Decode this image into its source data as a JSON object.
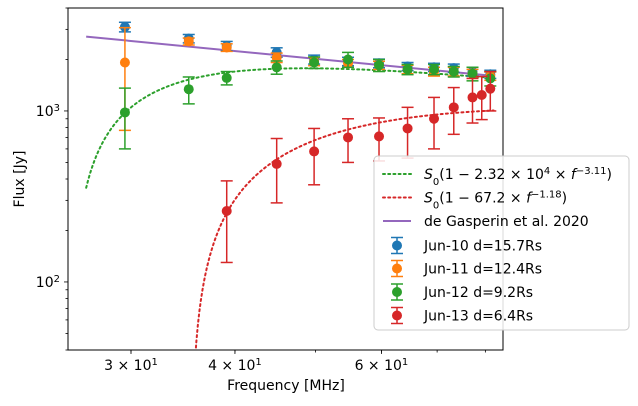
{
  "chart_data": {
    "type": "scatter",
    "xlabel": "Frequency [MHz]",
    "ylabel": "Flux [Jy]",
    "xscale": "log",
    "yscale": "log",
    "xlim": [
      25.2,
      84
    ],
    "ylim": [
      40,
      4000
    ],
    "x_ticks": [
      {
        "value": 30,
        "base": "3",
        "exp": "1"
      },
      {
        "value": 40,
        "base": "4",
        "exp": "1"
      },
      {
        "value": 60,
        "base": "6",
        "exp": "1"
      }
    ],
    "y_ticks": [
      {
        "value": 100,
        "base": "10",
        "exp": "2"
      },
      {
        "value": 1000,
        "base": "10",
        "exp": "3"
      }
    ],
    "legend_position": "center-right",
    "models": [
      {
        "label_tex": "S_0(1 - 2.32 × 10^4 × f^-3.11)",
        "label_prefix": "(1 − 2.32 × 10",
        "color": "#2ca02c",
        "style": "dotted",
        "A": 23200,
        "b": 3.11
      },
      {
        "label_tex": "S_0(1 - 67.2 × f^-1.18)",
        "label_prefix": "(1 − 67.2 × ",
        "color": "#d62728",
        "style": "dotted",
        "A": 67.2,
        "b": 1.18
      },
      {
        "label": "de Gasperin et al. 2020",
        "color": "#9467bd",
        "style": "solid",
        "points": [
          [
            26.5,
            2720
          ],
          [
            82,
            1600
          ]
        ]
      }
    ],
    "series": [
      {
        "name": "Jun-10 d=15.7Rs",
        "color": "#1f77b4",
        "x": [
          29.5,
          35.2,
          39.1,
          44.9,
          49.8,
          54.7,
          59.6,
          64.5,
          69.4,
          73.3,
          77.2,
          81.1
        ],
        "y": [
          3100,
          2650,
          2400,
          2200,
          2000,
          1950,
          1900,
          1820,
          1800,
          1780,
          1700,
          1640
        ],
        "yerr": [
          200,
          150,
          150,
          140,
          120,
          110,
          110,
          100,
          100,
          100,
          100,
          90
        ]
      },
      {
        "name": "Jun-11 d=12.4Rs",
        "color": "#ff7f0e",
        "x": [
          29.5,
          35.2,
          39.1,
          44.9,
          49.8,
          54.7,
          59.6,
          64.5,
          69.4,
          73.3,
          77.2,
          81.1
        ],
        "y": [
          1920,
          2550,
          2350,
          2050,
          1950,
          1900,
          1850,
          1750,
          1700,
          1700,
          1650,
          1600
        ],
        "yerr": [
          1150,
          120,
          120,
          130,
          110,
          100,
          100,
          100,
          100,
          100,
          100,
          90
        ]
      },
      {
        "name": "Jun-12 d=9.2Rs",
        "color": "#2ca02c",
        "x": [
          29.5,
          35.2,
          39.1,
          44.9,
          49.8,
          54.7,
          59.6,
          64.5,
          69.4,
          73.3,
          77.2,
          81.1
        ],
        "y": [
          980,
          1340,
          1560,
          1800,
          1920,
          2000,
          1850,
          1750,
          1750,
          1700,
          1650,
          1550
        ],
        "yerr": [
          380,
          240,
          140,
          160,
          150,
          200,
          150,
          120,
          120,
          120,
          150,
          150
        ]
      },
      {
        "name": "Jun-13 d=6.4Rs",
        "color": "#d62728",
        "x": [
          39.1,
          44.9,
          49.8,
          54.7,
          59.6,
          64.5,
          69.4,
          73.3,
          77.2,
          79.2,
          81.1
        ],
        "y": [
          260,
          490,
          580,
          700,
          710,
          790,
          900,
          1050,
          1200,
          1240,
          1350
        ],
        "yerr": [
          130,
          200,
          210,
          200,
          200,
          260,
          300,
          320,
          350,
          350,
          350
        ]
      }
    ]
  }
}
